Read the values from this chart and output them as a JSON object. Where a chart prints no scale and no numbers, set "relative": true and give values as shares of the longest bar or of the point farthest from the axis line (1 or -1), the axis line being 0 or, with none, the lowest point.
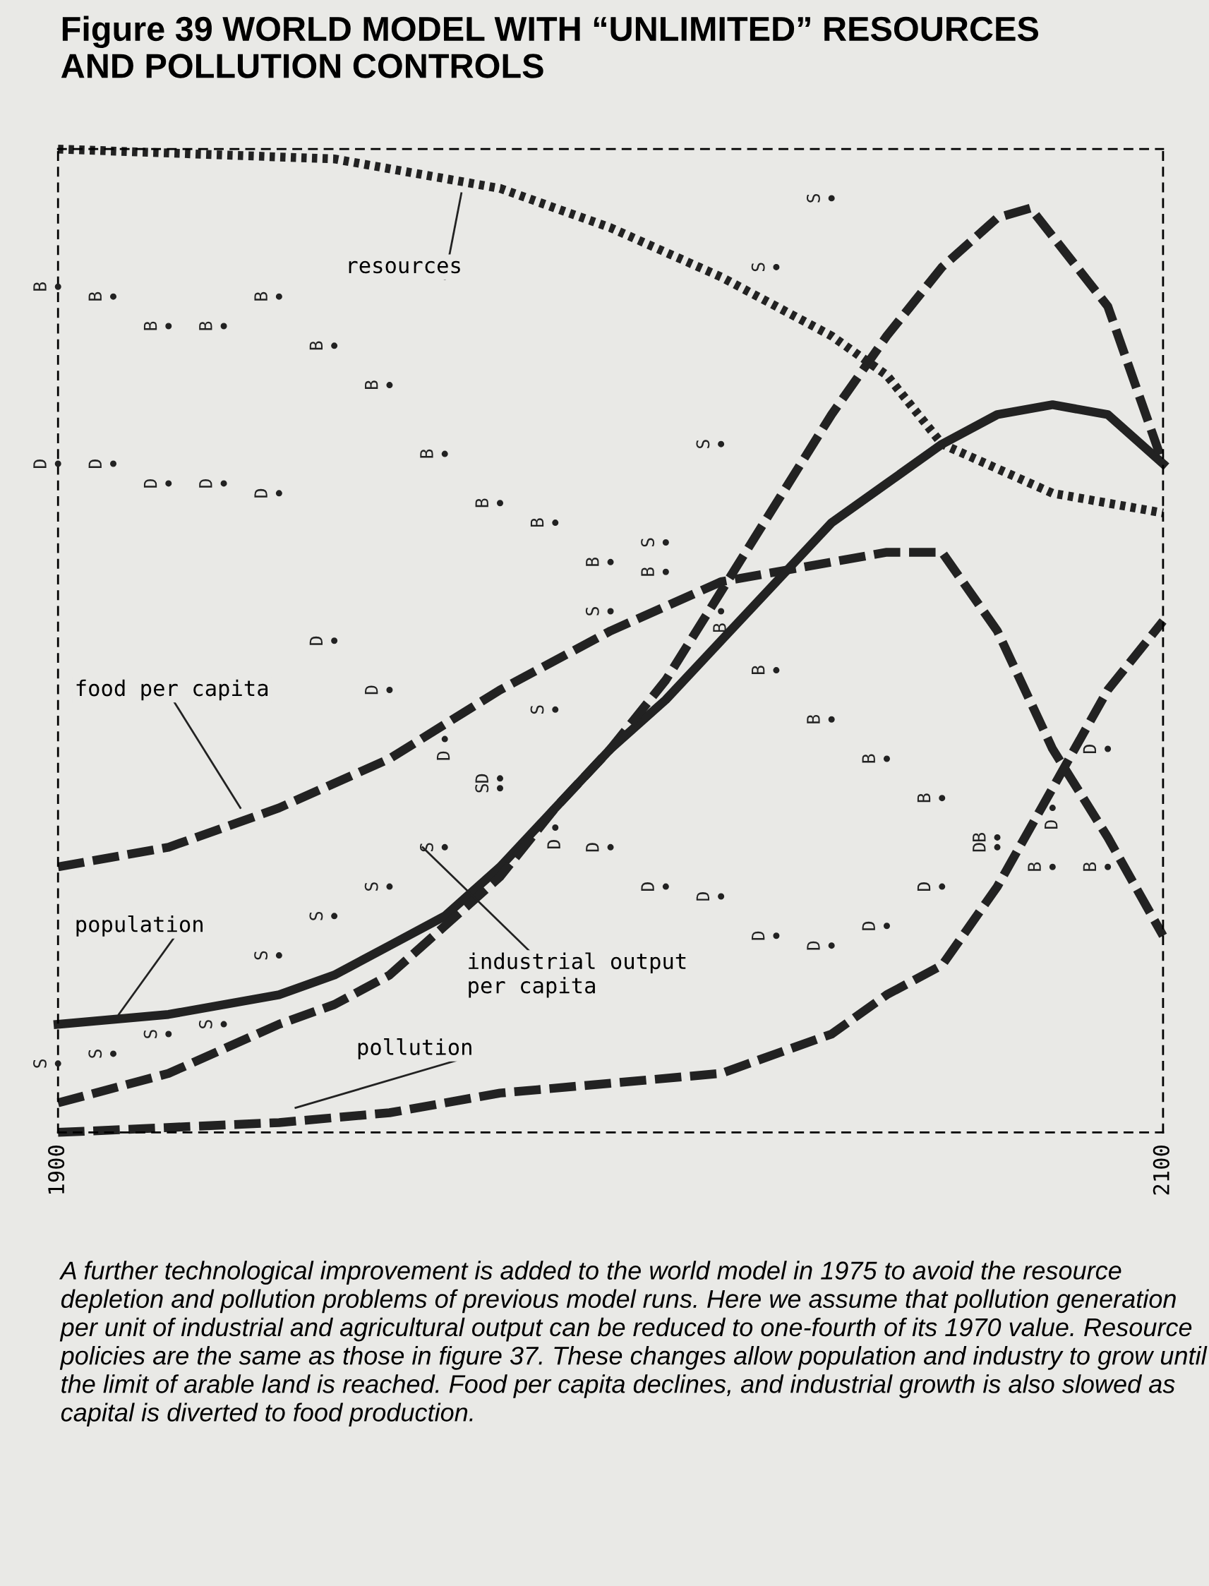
{
  "chart_data": {
    "type": "line",
    "title": "Figure 39 WORLD MODEL WITH “UNLIMITED” RESOURCES\nAND POLLUTION CONTROLS",
    "relative": true,
    "xlim": [
      1900,
      2100
    ],
    "xticks": [
      1900,
      2100
    ],
    "tick_labels": "x",
    "grid": false,
    "legend": false,
    "series": [
      {
        "color": "#222222",
        "line_style": "dotted",
        "x": [
          1900,
          1950,
          1970,
          1980,
          2000,
          2020,
          2040,
          2050,
          2060,
          2080,
          2100
        ],
        "values": [
          1.0,
          0.99,
          0.97,
          0.96,
          0.92,
          0.87,
          0.81,
          0.77,
          0.7,
          0.65,
          0.63
        ]
      },
      {
        "color": "#222222",
        "line_style": "dashed",
        "x": [
          1900,
          1920,
          1940,
          1960,
          1980,
          2000,
          2020,
          2040,
          2050,
          2060,
          2070,
          2080,
          2090,
          2100
        ],
        "values": [
          0.27,
          0.29,
          0.33,
          0.38,
          0.45,
          0.51,
          0.56,
          0.58,
          0.59,
          0.59,
          0.51,
          0.39,
          0.3,
          0.2
        ]
      },
      {
        "color": "#222222",
        "line_style": "solid",
        "x": [
          1900,
          1920,
          1940,
          1950,
          1960,
          1970,
          1980,
          1990,
          2000,
          2010,
          2020,
          2030,
          2040,
          2050,
          2060,
          2070,
          2080,
          2090,
          2100
        ],
        "values": [
          0.11,
          0.12,
          0.14,
          0.16,
          0.19,
          0.22,
          0.27,
          0.33,
          0.39,
          0.44,
          0.5,
          0.56,
          0.62,
          0.66,
          0.7,
          0.73,
          0.74,
          0.73,
          0.68
        ]
      },
      {
        "color": "#222222",
        "line_style": "dashed",
        "x": [
          1900,
          1920,
          1940,
          1950,
          1960,
          1970,
          1980,
          1990,
          2000,
          2010,
          2020,
          2030,
          2040,
          2050,
          2060,
          2070,
          2076,
          2090,
          2100
        ],
        "values": [
          0.03,
          0.06,
          0.11,
          0.13,
          0.16,
          0.21,
          0.26,
          0.33,
          0.39,
          0.46,
          0.55,
          0.64,
          0.73,
          0.81,
          0.88,
          0.93,
          0.94,
          0.84,
          0.68
        ]
      },
      {
        "color": "#222222",
        "line_style": "dashed",
        "x": [
          1900,
          1940,
          1960,
          1980,
          2000,
          2020,
          2030,
          2040,
          2050,
          2060,
          2070,
          2080,
          2090,
          2100
        ],
        "values": [
          0.0,
          0.01,
          0.02,
          0.04,
          0.05,
          0.06,
          0.08,
          0.1,
          0.14,
          0.17,
          0.25,
          0.35,
          0.45,
          0.52
        ]
      },
      {
        "type": "scatter",
        "name": "B",
        "marker": "circle",
        "color": "#222222",
        "x": [
          1900,
          1910,
          1920,
          1930,
          1940,
          1950,
          1960,
          1970,
          1980,
          1990,
          2000,
          2010,
          2020,
          2030,
          2040,
          2050,
          2060,
          2070,
          2080,
          2090
        ],
        "values": [
          0.86,
          0.85,
          0.82,
          0.82,
          0.85,
          0.8,
          0.76,
          0.69,
          0.64,
          0.62,
          0.58,
          0.57,
          0.53,
          0.47,
          0.42,
          0.38,
          0.34,
          0.3,
          0.27,
          0.27
        ]
      },
      {
        "type": "scatter",
        "name": "D",
        "marker": "circle",
        "color": "#222222",
        "x": [
          1900,
          1910,
          1920,
          1930,
          1940,
          1950,
          1960,
          1970,
          1980,
          1990,
          2000,
          2010,
          2020,
          2030,
          2040,
          2050,
          2060,
          2070,
          2080,
          2090
        ],
        "values": [
          0.68,
          0.68,
          0.66,
          0.66,
          0.65,
          0.5,
          0.45,
          0.4,
          0.36,
          0.31,
          0.29,
          0.25,
          0.24,
          0.2,
          0.19,
          0.21,
          0.25,
          0.29,
          0.33,
          0.39
        ]
      },
      {
        "type": "scatter",
        "name": "S",
        "marker": "circle",
        "color": "#222222",
        "x": [
          1900,
          1910,
          1920,
          1930,
          1940,
          1950,
          1960,
          1970,
          1980,
          1990,
          2000,
          2010,
          2020,
          2030,
          2040
        ],
        "values": [
          0.07,
          0.08,
          0.1,
          0.11,
          0.18,
          0.22,
          0.25,
          0.29,
          0.35,
          0.43,
          0.53,
          0.6,
          0.7,
          0.88,
          0.95
        ]
      }
    ],
    "annotations": [
      "resources",
      "food per capita",
      "population",
      "industrial output\nper capita",
      "pollution",
      "A further technological improvement is added to the world model in 1975 to avoid the resource depletion and pollution problems of previous model runs. Here we assume that pollution generation per unit of industrial and agricultural output can be reduced to one-fourth of its 1970 value. Resource policies are the same as those in figure 37. These changes allow population and industry to grow until the limit of arable land is reached. Food per capita declines, and industrial growth is also slowed as capital is diverted to food production."
    ]
  }
}
